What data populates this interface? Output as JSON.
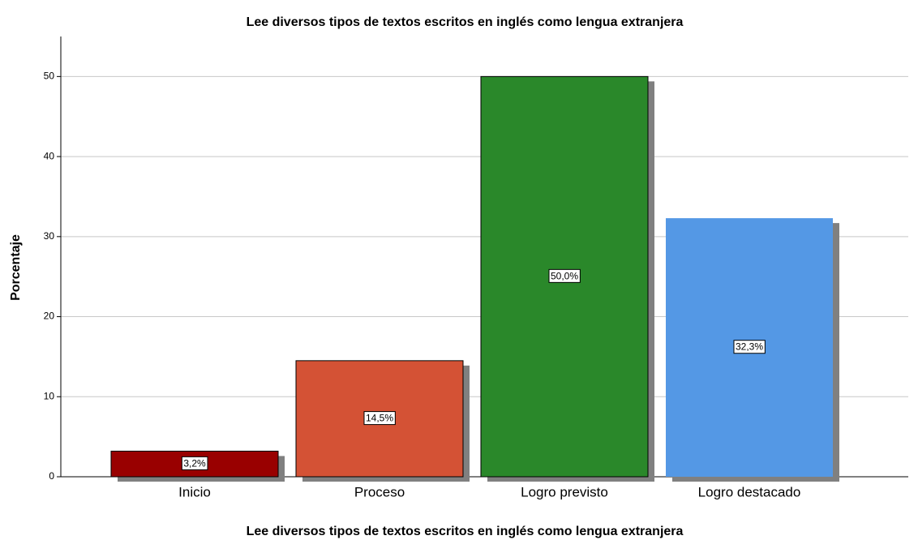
{
  "chart_data": {
    "type": "bar",
    "title": "Lee diversos tipos de textos escritos en inglés como lengua extranjera",
    "x_label": "Lee diversos tipos de textos escritos en inglés como lengua extranjera",
    "y_label": "Porcentaje",
    "categories": [
      "Inicio",
      "Proceso",
      "Logro previsto",
      "Logro destacado"
    ],
    "values": [
      3.2,
      14.5,
      50.0,
      32.3
    ],
    "value_labels": [
      "3,2%",
      "14,5%",
      "50,0%",
      "32,3%"
    ],
    "colors": [
      "#990000",
      "#d45235",
      "#2a882a",
      "#5498e5"
    ],
    "ylim": [
      0,
      55
    ],
    "yticks": [
      0,
      10,
      20,
      30,
      40,
      50
    ],
    "grid": true
  }
}
